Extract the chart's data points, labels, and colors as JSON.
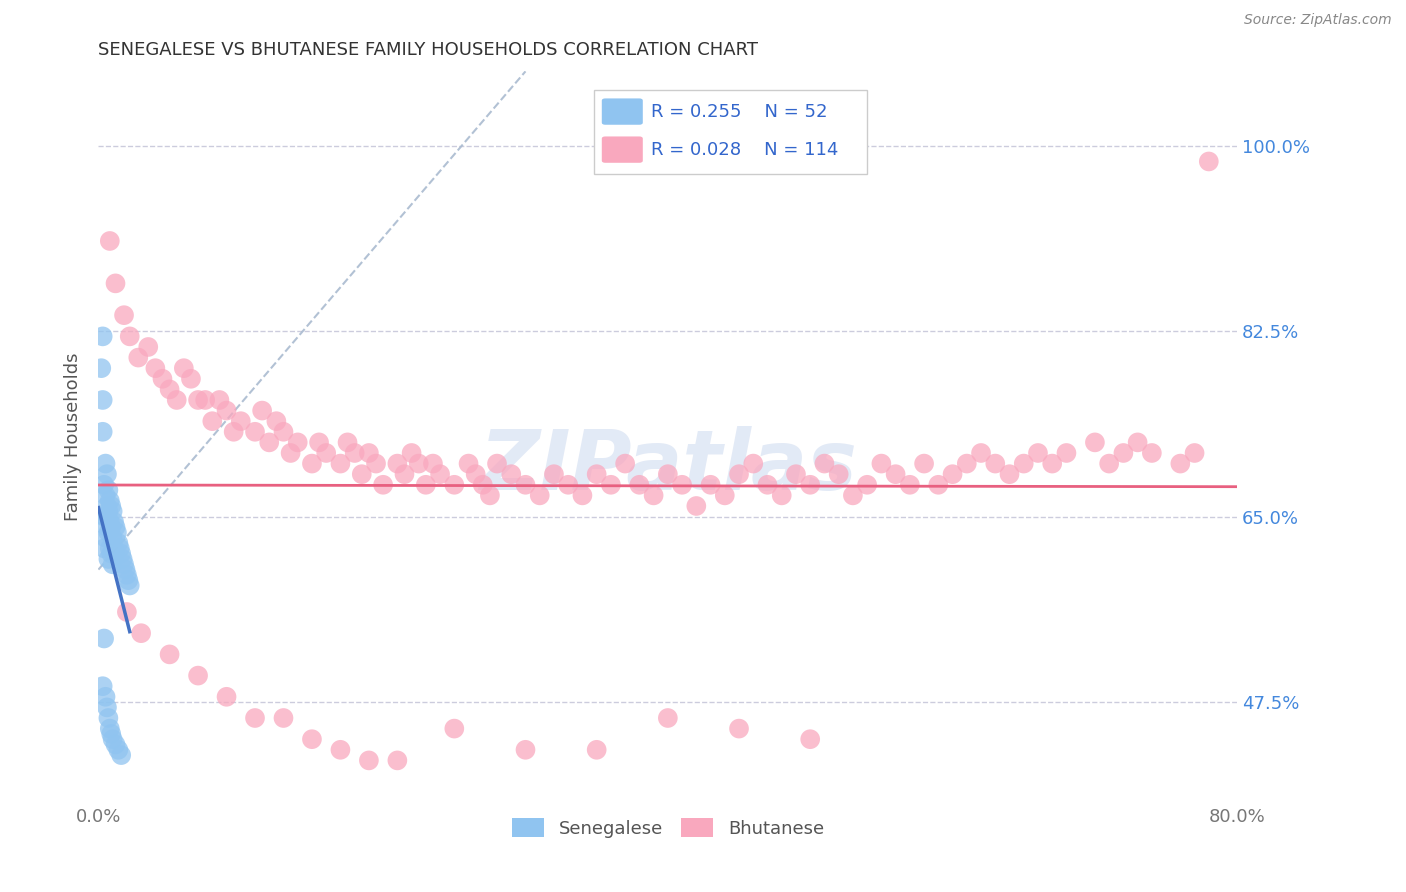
{
  "title": "SENEGALESE VS BHUTANESE FAMILY HOUSEHOLDS CORRELATION CHART",
  "source": "Source: ZipAtlas.com",
  "ylabel": "Family Households",
  "xmin": 0.0,
  "xmax": 0.8,
  "ymin": 0.38,
  "ymax": 1.07,
  "yticks": [
    0.475,
    0.65,
    0.825,
    1.0
  ],
  "ytick_labels": [
    "47.5%",
    "65.0%",
    "82.5%",
    "100.0%"
  ],
  "xticks": [
    0.0,
    0.1,
    0.2,
    0.3,
    0.4,
    0.5,
    0.6,
    0.7,
    0.8
  ],
  "xtick_labels": [
    "0.0%",
    "",
    "",
    "",
    "",
    "",
    "",
    "",
    "80.0%"
  ],
  "legend_r_senegalese": "R = 0.255",
  "legend_n_senegalese": "N = 52",
  "legend_r_bhutanese": "R = 0.028",
  "legend_n_bhutanese": "N = 114",
  "senegalese_color": "#90C4F0",
  "bhutanese_color": "#F9A8BE",
  "trend_senegalese_color": "#4472C4",
  "trend_bhutanese_color": "#E86080",
  "ref_line_color": "#AABBD0",
  "watermark_color": "#D0DCF0",
  "background_color": "#FFFFFF",
  "sen_x": [
    0.002,
    0.003,
    0.003,
    0.004,
    0.004,
    0.004,
    0.005,
    0.005,
    0.005,
    0.005,
    0.006,
    0.006,
    0.006,
    0.007,
    0.007,
    0.007,
    0.007,
    0.008,
    0.008,
    0.008,
    0.009,
    0.009,
    0.009,
    0.01,
    0.01,
    0.01,
    0.011,
    0.011,
    0.012,
    0.012,
    0.013,
    0.014,
    0.015,
    0.016,
    0.017,
    0.018,
    0.019,
    0.02,
    0.021,
    0.022,
    0.003,
    0.005,
    0.006,
    0.007,
    0.008,
    0.009,
    0.01,
    0.012,
    0.014,
    0.016,
    0.004,
    0.003
  ],
  "sen_y": [
    0.79,
    0.76,
    0.73,
    0.68,
    0.65,
    0.62,
    0.7,
    0.67,
    0.65,
    0.63,
    0.69,
    0.66,
    0.64,
    0.675,
    0.655,
    0.635,
    0.61,
    0.665,
    0.645,
    0.62,
    0.66,
    0.64,
    0.615,
    0.655,
    0.63,
    0.605,
    0.645,
    0.62,
    0.64,
    0.615,
    0.635,
    0.625,
    0.62,
    0.615,
    0.61,
    0.605,
    0.6,
    0.595,
    0.59,
    0.585,
    0.49,
    0.48,
    0.47,
    0.46,
    0.45,
    0.445,
    0.44,
    0.435,
    0.43,
    0.425,
    0.535,
    0.82
  ],
  "bhu_x": [
    0.008,
    0.012,
    0.018,
    0.022,
    0.028,
    0.035,
    0.04,
    0.045,
    0.05,
    0.055,
    0.06,
    0.065,
    0.07,
    0.075,
    0.08,
    0.085,
    0.09,
    0.095,
    0.1,
    0.11,
    0.115,
    0.12,
    0.125,
    0.13,
    0.135,
    0.14,
    0.15,
    0.155,
    0.16,
    0.17,
    0.175,
    0.18,
    0.185,
    0.19,
    0.195,
    0.2,
    0.21,
    0.215,
    0.22,
    0.225,
    0.23,
    0.235,
    0.24,
    0.25,
    0.26,
    0.265,
    0.27,
    0.275,
    0.28,
    0.29,
    0.3,
    0.31,
    0.32,
    0.33,
    0.34,
    0.35,
    0.36,
    0.37,
    0.38,
    0.39,
    0.4,
    0.41,
    0.42,
    0.43,
    0.44,
    0.45,
    0.46,
    0.47,
    0.48,
    0.49,
    0.5,
    0.51,
    0.52,
    0.53,
    0.54,
    0.55,
    0.56,
    0.57,
    0.58,
    0.59,
    0.6,
    0.61,
    0.62,
    0.63,
    0.64,
    0.65,
    0.66,
    0.67,
    0.68,
    0.7,
    0.71,
    0.72,
    0.73,
    0.74,
    0.76,
    0.77,
    0.02,
    0.03,
    0.05,
    0.07,
    0.09,
    0.11,
    0.13,
    0.15,
    0.17,
    0.19,
    0.21,
    0.25,
    0.3,
    0.35,
    0.4,
    0.45,
    0.5,
    0.78
  ],
  "bhu_y": [
    0.91,
    0.87,
    0.84,
    0.82,
    0.8,
    0.81,
    0.79,
    0.78,
    0.77,
    0.76,
    0.79,
    0.78,
    0.76,
    0.76,
    0.74,
    0.76,
    0.75,
    0.73,
    0.74,
    0.73,
    0.75,
    0.72,
    0.74,
    0.73,
    0.71,
    0.72,
    0.7,
    0.72,
    0.71,
    0.7,
    0.72,
    0.71,
    0.69,
    0.71,
    0.7,
    0.68,
    0.7,
    0.69,
    0.71,
    0.7,
    0.68,
    0.7,
    0.69,
    0.68,
    0.7,
    0.69,
    0.68,
    0.67,
    0.7,
    0.69,
    0.68,
    0.67,
    0.69,
    0.68,
    0.67,
    0.69,
    0.68,
    0.7,
    0.68,
    0.67,
    0.69,
    0.68,
    0.66,
    0.68,
    0.67,
    0.69,
    0.7,
    0.68,
    0.67,
    0.69,
    0.68,
    0.7,
    0.69,
    0.67,
    0.68,
    0.7,
    0.69,
    0.68,
    0.7,
    0.68,
    0.69,
    0.7,
    0.71,
    0.7,
    0.69,
    0.7,
    0.71,
    0.7,
    0.71,
    0.72,
    0.7,
    0.71,
    0.72,
    0.71,
    0.7,
    0.71,
    0.56,
    0.54,
    0.52,
    0.5,
    0.48,
    0.46,
    0.46,
    0.44,
    0.43,
    0.42,
    0.42,
    0.45,
    0.43,
    0.43,
    0.46,
    0.45,
    0.44,
    0.985
  ]
}
